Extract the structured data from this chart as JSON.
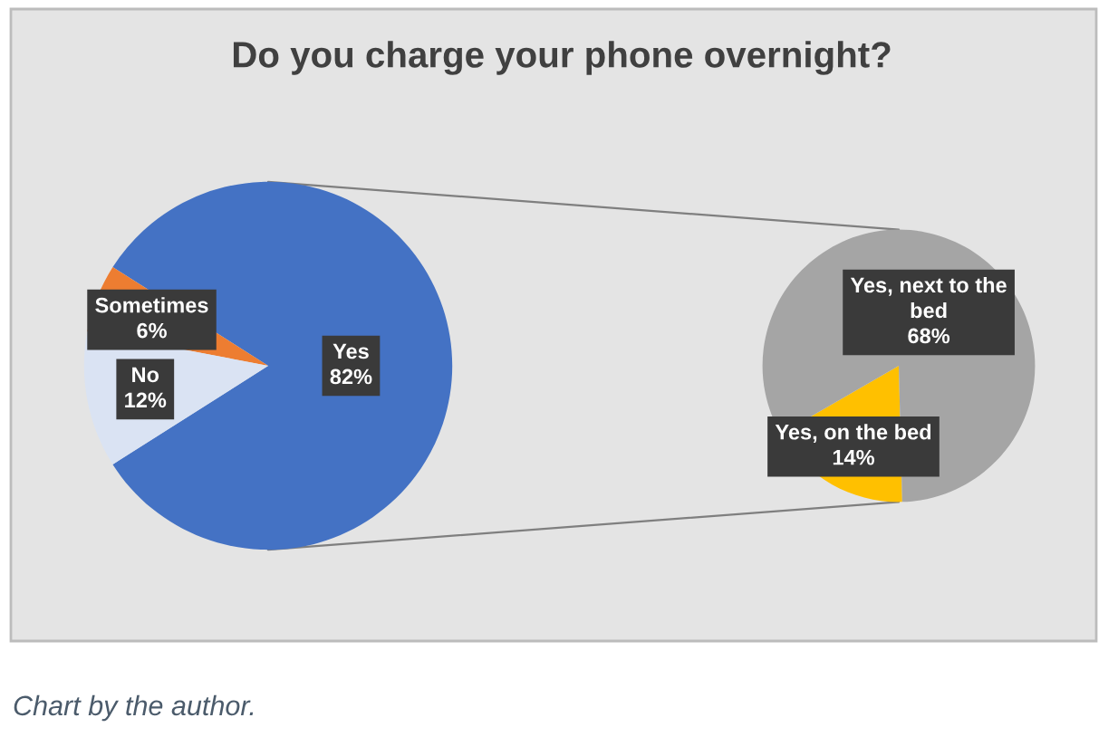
{
  "chart_data": [
    {
      "type": "pie",
      "title": "Do you charge your phone overnight?",
      "categories": [
        "Yes",
        "Sometimes",
        "No"
      ],
      "values": [
        82,
        6,
        12
      ],
      "colors": [
        "#4472c4",
        "#ed7d31",
        "#dae3f3"
      ],
      "value_labels": [
        "82%",
        "6%",
        "12%"
      ],
      "annotations": [
        "Chart by the author."
      ]
    },
    {
      "type": "pie",
      "categories": [
        "Yes, on the bed",
        "Yes, next to the bed"
      ],
      "values": [
        14,
        68
      ],
      "colors": [
        "#ffc000",
        "#a5a5a5"
      ],
      "value_labels": [
        "14%",
        "68%"
      ]
    }
  ]
}
